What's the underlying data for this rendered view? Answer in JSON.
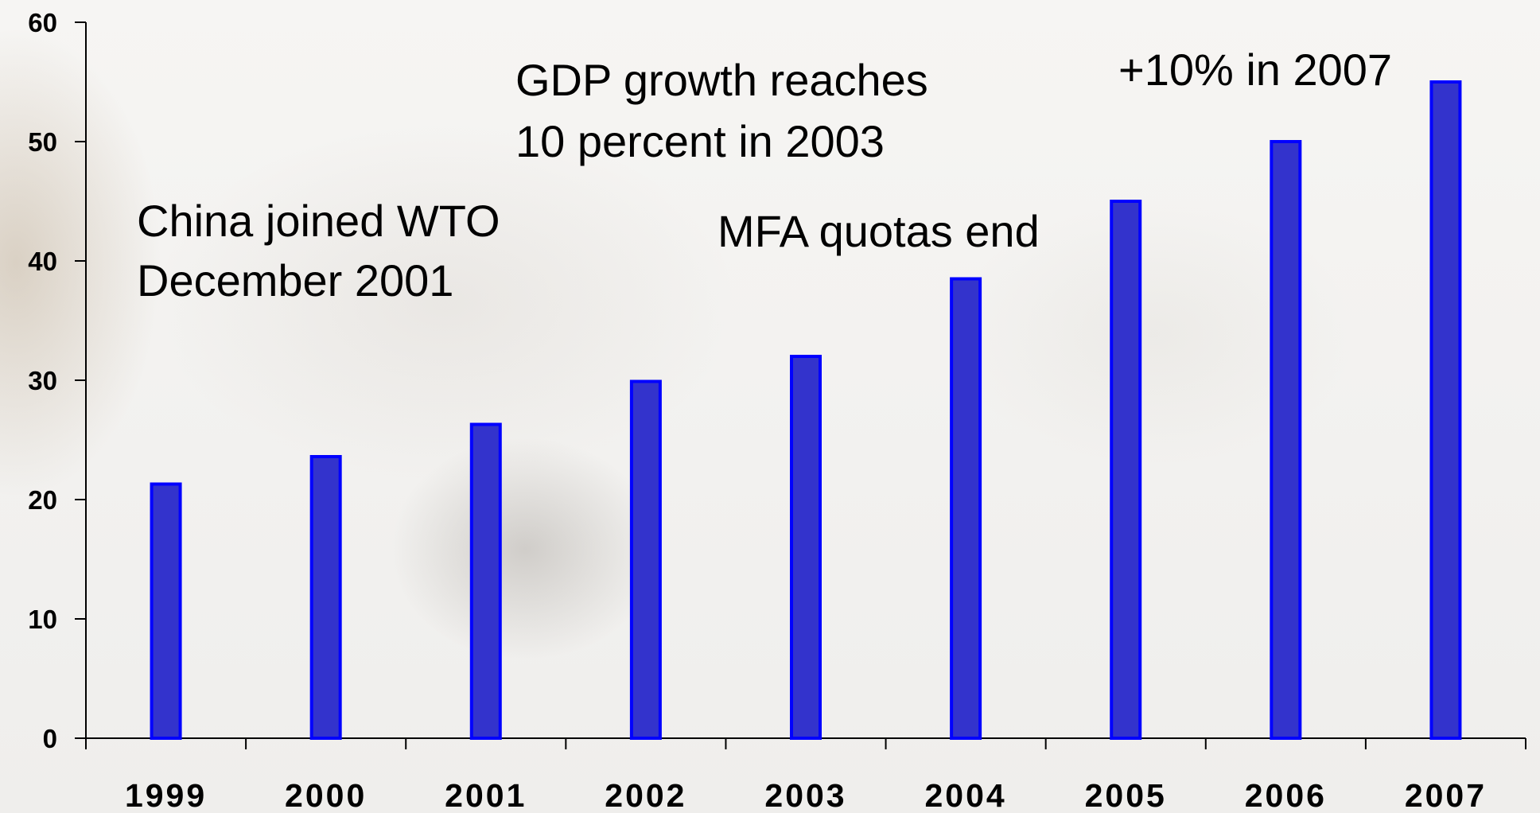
{
  "chart_data": {
    "type": "bar",
    "categories": [
      "1999",
      "2000",
      "2001",
      "2002",
      "2003",
      "2004",
      "2005",
      "2006",
      "2007"
    ],
    "values": [
      21.3,
      23.6,
      26.3,
      29.9,
      32.0,
      38.5,
      45.0,
      50.0,
      55.0
    ],
    "ylim": [
      0,
      60
    ],
    "yticks": [
      "0",
      "10",
      "20",
      "30",
      "40",
      "50",
      "60"
    ],
    "grid": false,
    "bar_color": "#3333cc",
    "bar_edge_color": "#0000ff",
    "annotations": [
      {
        "lines": [
          "China joined WTO",
          "December 2001"
        ]
      },
      {
        "lines": [
          "GDP growth reaches",
          "10 percent in 2003"
        ]
      },
      {
        "lines": [
          "MFA quotas end"
        ]
      },
      {
        "lines": [
          "+10% in 2007"
        ]
      }
    ]
  }
}
